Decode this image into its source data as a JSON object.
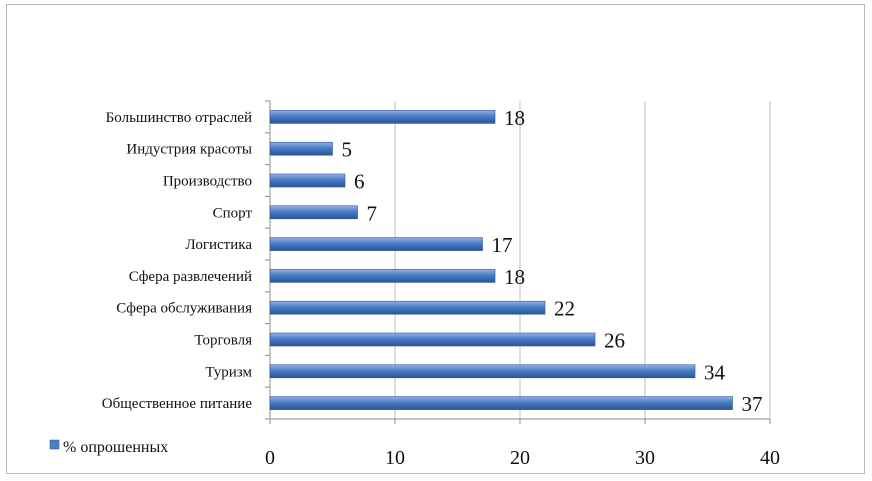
{
  "chart_data": {
    "type": "bar",
    "orientation": "horizontal",
    "title": "",
    "xlabel": "",
    "ylabel": "",
    "categories": [
      "Большинство отраслей",
      "Индустрия красоты",
      "Производство",
      "Спорт",
      "Логистика",
      "Сфера развлечений",
      "Сфера обслуживания",
      "Торговля",
      "Туризм",
      "Общественное питание"
    ],
    "series": [
      {
        "name": "% опрошенных",
        "values": [
          18,
          5,
          6,
          7,
          17,
          18,
          22,
          26,
          34,
          37
        ],
        "color": "#4a7dc4"
      }
    ],
    "xlim": [
      0,
      40
    ],
    "xticks": [
      "0",
      "10",
      "20",
      "30",
      "40"
    ],
    "grid": "vertical",
    "legend": "bottom-left",
    "data_labels": true
  }
}
